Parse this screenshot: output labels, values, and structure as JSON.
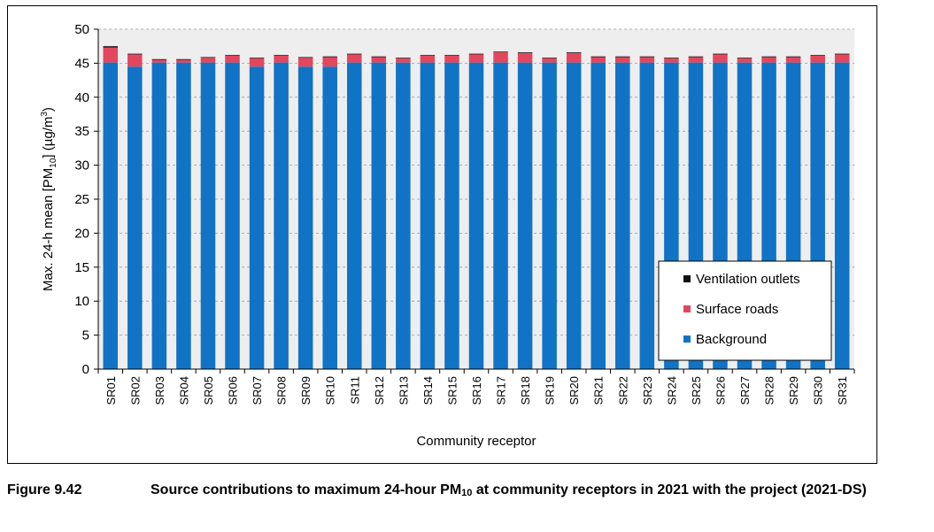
{
  "chart_data": {
    "type": "bar",
    "stacked": true,
    "categories": [
      "SR01",
      "SR02",
      "SR03",
      "SR04",
      "SR05",
      "SR06",
      "SR07",
      "SR08",
      "SR09",
      "SR10",
      "SR11",
      "SR12",
      "SR13",
      "SR14",
      "SR15",
      "SR16",
      "SR17",
      "SR18",
      "SR19",
      "SR20",
      "SR21",
      "SR22",
      "SR23",
      "SR24",
      "SR25",
      "SR26",
      "SR27",
      "SR28",
      "SR29",
      "SR30",
      "SR31"
    ],
    "series": [
      {
        "name": "Background",
        "color": "#1173C6",
        "values": [
          45.1,
          44.5,
          45.1,
          45.1,
          45.1,
          45.1,
          44.5,
          45.1,
          44.5,
          44.5,
          45.1,
          45.1,
          45.1,
          45.1,
          45.1,
          45.1,
          45.1,
          45.1,
          45.1,
          45.1,
          45.1,
          45.1,
          45.1,
          45.1,
          45.1,
          45.1,
          45.1,
          45.1,
          45.1,
          45.1,
          45.1
        ]
      },
      {
        "name": "Surface roads",
        "color": "#E2475E",
        "values": [
          2.2,
          1.8,
          0.4,
          0.4,
          0.7,
          1.0,
          1.2,
          1.0,
          1.3,
          1.4,
          1.2,
          0.8,
          0.6,
          1.0,
          1.0,
          1.2,
          1.5,
          1.4,
          0.6,
          1.4,
          0.8,
          0.8,
          0.8,
          0.6,
          0.8,
          1.2,
          0.6,
          0.8,
          0.8,
          1.0,
          1.2
        ]
      },
      {
        "name": "Ventilation outlets",
        "color": "#111111",
        "values": [
          0.2,
          0.1,
          0.1,
          0.1,
          0.1,
          0.1,
          0.1,
          0.1,
          0.1,
          0.1,
          0.1,
          0.1,
          0.1,
          0.1,
          0.1,
          0.1,
          0.1,
          0.1,
          0.1,
          0.1,
          0.1,
          0.1,
          0.1,
          0.1,
          0.1,
          0.1,
          0.1,
          0.1,
          0.1,
          0.1,
          0.1
        ]
      }
    ],
    "ylim": [
      0,
      50
    ],
    "yticks": [
      0,
      5,
      10,
      15,
      20,
      25,
      30,
      35,
      40,
      45,
      50
    ],
    "ylabel": "Max. 24-h mean [PM10] (µg/m3)",
    "ylabel_parts": {
      "pre": "Max. 24-h mean [PM",
      "sub": "10",
      "mid": "] (µg/m",
      "sup": "3",
      "post": ")"
    },
    "xlabel": "Community receptor",
    "grid": true,
    "legend_position": "bottom-right",
    "legend_order": [
      "Ventilation outlets",
      "Surface roads",
      "Background"
    ],
    "plot_background": "#EEEEEE"
  },
  "caption": {
    "label": "Figure 9.42",
    "text_pre": "Source contributions to maximum 24-hour PM",
    "text_sub": "10",
    "text_post": " at community receptors in 2021 with the project (2021-DS)"
  }
}
